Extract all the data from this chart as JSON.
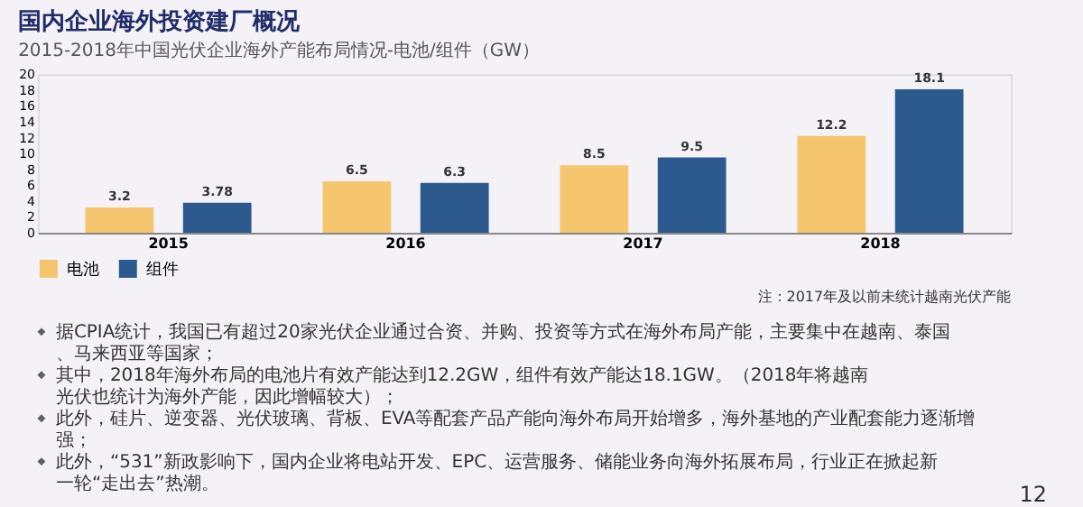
{
  "chart_data": {
    "type": "bar",
    "title": "国内企业海外投资建厂概况",
    "subtitle": "2015-2018年中国光伏企业海外产能布局情况-电池/组件（GW）",
    "categories": [
      "2015",
      "2016",
      "2017",
      "2018"
    ],
    "series": [
      {
        "name": "电池",
        "color": "#f5c66e",
        "values": [
          3.2,
          6.5,
          8.5,
          12.2
        ]
      },
      {
        "name": "组件",
        "color": "#2d5a8e",
        "values": [
          3.78,
          6.3,
          9.5,
          18.1
        ]
      }
    ],
    "ylim": [
      0,
      20
    ],
    "yticks": [
      0,
      2,
      4,
      6,
      8,
      10,
      12,
      14,
      16,
      18,
      20
    ],
    "grid": false,
    "legend": "bottom",
    "data_labels": true,
    "annotations": [
      "注：2017年及以前未统计越南光伏产能",
      "据CPIA统计，我国已有超过20家光伏企业通过合资、并购、投资等方式在海外布局产能，主要集中在越南、泰国、马来西亚等国家；",
      "其中，2018年海外布局的电池片有效产能达到12.2GW，组件有效产能达18.1GW。（2018年将越南光伏也统计为海外产能，因此增幅较大）；",
      "此外，硅片、逆变器、光伏玻璃、背板、EVA等配套产品产能向海外布局开始增多，海外基地的产业配套能力逐渐增强；",
      "此外，“531”新政影响下，国内企业将电站开发、EPC、运营服务、储能业务向海外拓展布局，行业正在掀起新一轮“走出去”热潮。",
      "12"
    ]
  }
}
